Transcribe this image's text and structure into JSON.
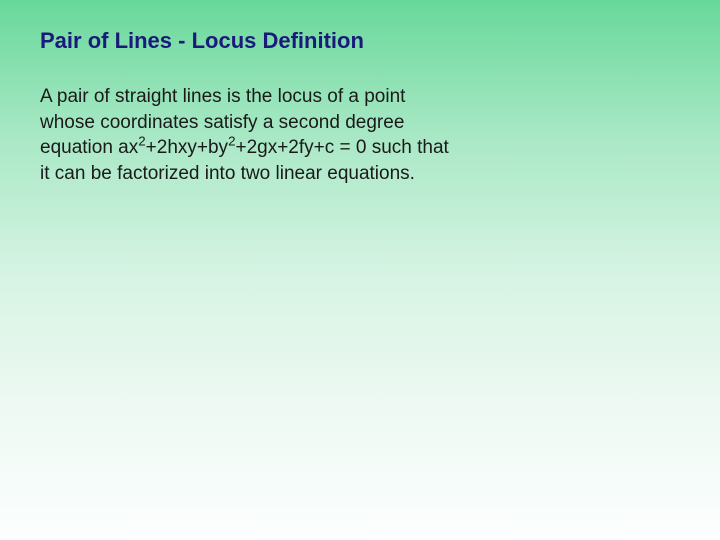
{
  "title": "Pair of Lines  - Locus Definition",
  "body_pre": "A pair of straight lines is the locus of a point whose coordinates satisfy a second degree equation ax",
  "sup1": "2",
  "body_mid1": "+2hxy+by",
  "sup2": "2",
  "body_mid2": "+2gx+2fy+c = 0 such that it can be factorized into two linear equations.",
  "colors": {
    "title_color": "#1a1a7a",
    "body_color": "#1a1a1a",
    "bg_gradient_top": "#68d89a",
    "bg_gradient_bottom": "#fcfefe"
  },
  "typography": {
    "title_fontsize": 22,
    "title_weight": "bold",
    "body_fontsize": 19,
    "font_family": "Verdana"
  }
}
